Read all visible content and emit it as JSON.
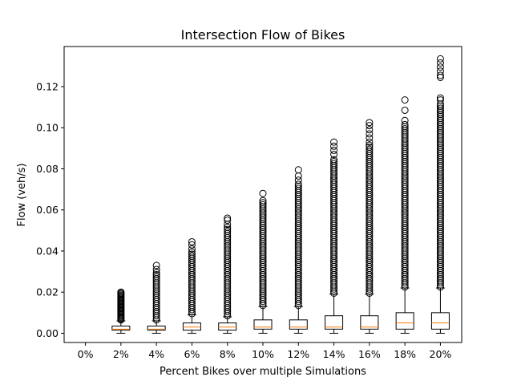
{
  "chart_data": {
    "type": "boxplot",
    "title": "Intersection Flow of Bikes",
    "xlabel": "Percent Bikes over multiple Simulations",
    "ylabel": "Flow (veh/s)",
    "ylim": [
      -0.0045,
      0.1395
    ],
    "yticks": [
      0.0,
      0.02,
      0.04,
      0.06,
      0.08,
      0.1,
      0.12
    ],
    "ytick_labels": [
      "0.00",
      "0.02",
      "0.04",
      "0.06",
      "0.08",
      "0.10",
      "0.12"
    ],
    "categories": [
      "0%",
      "2%",
      "4%",
      "6%",
      "8%",
      "10%",
      "12%",
      "14%",
      "16%",
      "18%",
      "20%"
    ],
    "grid": false,
    "colors": {
      "median": "#ff7f0e",
      "box": "#000000",
      "flier": "#000000"
    },
    "boxes": [
      {
        "label": "0%",
        "q1": 0.0,
        "median": 0.0,
        "q3": 0.0,
        "whisker_low": 0.0,
        "whisker_high": 0.0,
        "fliers": []
      },
      {
        "label": "2%",
        "q1": 0.0015,
        "median": 0.002,
        "q3": 0.0035,
        "whisker_low": 0.0,
        "whisker_high": 0.006,
        "fliers": [
          0.0065,
          0.007,
          0.0075,
          0.008,
          0.0085,
          0.009,
          0.0095,
          0.01,
          0.0105,
          0.011,
          0.0115,
          0.012,
          0.0125,
          0.013,
          0.0135,
          0.014,
          0.0145,
          0.015,
          0.0155,
          0.016,
          0.0165,
          0.017,
          0.0175,
          0.018,
          0.0185,
          0.019,
          0.0195,
          0.02
        ]
      },
      {
        "label": "4%",
        "q1": 0.0015,
        "median": 0.002,
        "q3": 0.0035,
        "whisker_low": 0.0,
        "whisker_high": 0.006,
        "fliers": [
          0.0065,
          0.0075,
          0.0085,
          0.0095,
          0.0105,
          0.0115,
          0.0125,
          0.0135,
          0.0145,
          0.0155,
          0.0165,
          0.0175,
          0.0185,
          0.0195,
          0.0205,
          0.0215,
          0.0225,
          0.0235,
          0.0245,
          0.0255,
          0.0265,
          0.0275,
          0.0285,
          0.0295,
          0.031,
          0.033
        ]
      },
      {
        "label": "6%",
        "q1": 0.0015,
        "median": 0.003,
        "q3": 0.005,
        "whisker_low": 0.0,
        "whisker_high": 0.009,
        "fliers": [
          0.0095,
          0.0105,
          0.0115,
          0.0125,
          0.0135,
          0.0145,
          0.0155,
          0.0165,
          0.0175,
          0.0185,
          0.0195,
          0.0205,
          0.0215,
          0.0225,
          0.0235,
          0.0245,
          0.0255,
          0.0265,
          0.0275,
          0.0285,
          0.0295,
          0.0305,
          0.0315,
          0.0325,
          0.0335,
          0.0345,
          0.0355,
          0.0365,
          0.0375,
          0.0385,
          0.0395,
          0.041,
          0.043,
          0.0445
        ]
      },
      {
        "label": "8%",
        "q1": 0.0015,
        "median": 0.003,
        "q3": 0.005,
        "whisker_low": 0.0,
        "whisker_high": 0.008,
        "fliers": [
          0.0085,
          0.0095,
          0.0105,
          0.0115,
          0.0125,
          0.0135,
          0.0145,
          0.0155,
          0.0165,
          0.0175,
          0.0185,
          0.0195,
          0.0205,
          0.0215,
          0.0225,
          0.0235,
          0.0245,
          0.0255,
          0.0265,
          0.0275,
          0.0285,
          0.0295,
          0.0305,
          0.0315,
          0.0325,
          0.0335,
          0.0345,
          0.0355,
          0.0365,
          0.0375,
          0.0385,
          0.0395,
          0.0405,
          0.0415,
          0.0425,
          0.0435,
          0.0445,
          0.0455,
          0.0465,
          0.0475,
          0.0485,
          0.0495,
          0.0505,
          0.0515,
          0.053,
          0.055,
          0.056
        ]
      },
      {
        "label": "10%",
        "q1": 0.002,
        "median": 0.003,
        "q3": 0.0065,
        "whisker_low": 0.0,
        "whisker_high": 0.013,
        "fliers": [
          0.0135,
          0.0145,
          0.0155,
          0.0165,
          0.0175,
          0.0185,
          0.0195,
          0.0205,
          0.0215,
          0.0225,
          0.0235,
          0.0245,
          0.0255,
          0.0265,
          0.0275,
          0.0285,
          0.0295,
          0.0305,
          0.0315,
          0.0325,
          0.0335,
          0.0345,
          0.0355,
          0.0365,
          0.0375,
          0.0385,
          0.0395,
          0.0405,
          0.0415,
          0.0425,
          0.0435,
          0.0445,
          0.0455,
          0.0465,
          0.0475,
          0.0485,
          0.0495,
          0.0505,
          0.0515,
          0.0525,
          0.0535,
          0.0545,
          0.0555,
          0.0565,
          0.0575,
          0.0585,
          0.0595,
          0.0605,
          0.0615,
          0.0625,
          0.0635,
          0.0645,
          0.068
        ]
      },
      {
        "label": "12%",
        "q1": 0.002,
        "median": 0.003,
        "q3": 0.0065,
        "whisker_low": 0.0,
        "whisker_high": 0.013,
        "fliers": [
          0.0135,
          0.0145,
          0.0155,
          0.0165,
          0.0175,
          0.0185,
          0.0195,
          0.0205,
          0.0215,
          0.0225,
          0.0235,
          0.0245,
          0.0255,
          0.0265,
          0.0275,
          0.0285,
          0.0295,
          0.0305,
          0.0315,
          0.0325,
          0.0335,
          0.0345,
          0.0355,
          0.0365,
          0.0375,
          0.0385,
          0.0395,
          0.0405,
          0.0415,
          0.0425,
          0.0435,
          0.0445,
          0.0455,
          0.0465,
          0.0475,
          0.0485,
          0.0495,
          0.0505,
          0.0515,
          0.0525,
          0.0535,
          0.0545,
          0.0555,
          0.0565,
          0.0575,
          0.0585,
          0.0595,
          0.0605,
          0.0615,
          0.0625,
          0.0635,
          0.0645,
          0.0655,
          0.0665,
          0.0675,
          0.0685,
          0.0695,
          0.0705,
          0.0715,
          0.0725,
          0.0745,
          0.0765,
          0.0795
        ]
      },
      {
        "label": "14%",
        "q1": 0.002,
        "median": 0.003,
        "q3": 0.0085,
        "whisker_low": 0.0,
        "whisker_high": 0.019,
        "fliers": [
          0.0195,
          0.0205,
          0.0215,
          0.0225,
          0.0235,
          0.0245,
          0.0255,
          0.0265,
          0.0275,
          0.0285,
          0.0295,
          0.0305,
          0.0315,
          0.0325,
          0.0335,
          0.0345,
          0.0355,
          0.0365,
          0.0375,
          0.0385,
          0.0395,
          0.0405,
          0.0415,
          0.0425,
          0.0435,
          0.0445,
          0.0455,
          0.0465,
          0.0475,
          0.0485,
          0.0495,
          0.0505,
          0.0515,
          0.0525,
          0.0535,
          0.0545,
          0.0555,
          0.0565,
          0.0575,
          0.0585,
          0.0595,
          0.0605,
          0.0615,
          0.0625,
          0.0635,
          0.0645,
          0.0655,
          0.0665,
          0.0675,
          0.0685,
          0.0695,
          0.0705,
          0.0715,
          0.0725,
          0.0735,
          0.0745,
          0.0755,
          0.0765,
          0.0775,
          0.0785,
          0.0795,
          0.0805,
          0.0815,
          0.0825,
          0.0835,
          0.0845,
          0.087,
          0.089,
          0.091,
          0.093
        ]
      },
      {
        "label": "16%",
        "q1": 0.002,
        "median": 0.003,
        "q3": 0.0085,
        "whisker_low": 0.0,
        "whisker_high": 0.019,
        "fliers": [
          0.0195,
          0.0205,
          0.0215,
          0.0225,
          0.0235,
          0.0245,
          0.0255,
          0.0265,
          0.0275,
          0.0285,
          0.0295,
          0.0305,
          0.0315,
          0.0325,
          0.0335,
          0.0345,
          0.0355,
          0.0365,
          0.0375,
          0.0385,
          0.0395,
          0.0405,
          0.0415,
          0.0425,
          0.0435,
          0.0445,
          0.0455,
          0.0465,
          0.0475,
          0.0485,
          0.0495,
          0.0505,
          0.0515,
          0.0525,
          0.0535,
          0.0545,
          0.0555,
          0.0565,
          0.0575,
          0.0585,
          0.0595,
          0.0605,
          0.0615,
          0.0625,
          0.0635,
          0.0645,
          0.0655,
          0.0665,
          0.0675,
          0.0685,
          0.0695,
          0.0705,
          0.0715,
          0.0725,
          0.0735,
          0.0745,
          0.0755,
          0.0765,
          0.0775,
          0.0785,
          0.0795,
          0.0805,
          0.0815,
          0.0825,
          0.0835,
          0.0845,
          0.0855,
          0.0865,
          0.0875,
          0.0885,
          0.0895,
          0.0905,
          0.0915,
          0.093,
          0.095,
          0.097,
          0.099,
          0.101,
          0.1025
        ]
      },
      {
        "label": "18%",
        "q1": 0.002,
        "median": 0.005,
        "q3": 0.01,
        "whisker_low": 0.0,
        "whisker_high": 0.022,
        "fliers": [
          0.0225,
          0.0235,
          0.0245,
          0.0255,
          0.0265,
          0.0275,
          0.0285,
          0.0295,
          0.0305,
          0.0315,
          0.0325,
          0.0335,
          0.0345,
          0.0355,
          0.0365,
          0.0375,
          0.0385,
          0.0395,
          0.0405,
          0.0415,
          0.0425,
          0.0435,
          0.0445,
          0.0455,
          0.0465,
          0.0475,
          0.0485,
          0.0495,
          0.0505,
          0.0515,
          0.0525,
          0.0535,
          0.0545,
          0.0555,
          0.0565,
          0.0575,
          0.0585,
          0.0595,
          0.0605,
          0.0615,
          0.0625,
          0.0635,
          0.0645,
          0.0655,
          0.0665,
          0.0675,
          0.0685,
          0.0695,
          0.0705,
          0.0715,
          0.0725,
          0.0735,
          0.0745,
          0.0755,
          0.0765,
          0.0775,
          0.0785,
          0.0795,
          0.0805,
          0.0815,
          0.0825,
          0.0835,
          0.0845,
          0.0855,
          0.0865,
          0.0875,
          0.0885,
          0.0895,
          0.0905,
          0.0915,
          0.0925,
          0.0935,
          0.0945,
          0.0955,
          0.0965,
          0.0975,
          0.0985,
          0.0995,
          0.1005,
          0.1015,
          0.1035,
          0.1085,
          0.1135
        ]
      },
      {
        "label": "20%",
        "q1": 0.002,
        "median": 0.005,
        "q3": 0.01,
        "whisker_low": 0.0,
        "whisker_high": 0.022,
        "fliers": [
          0.0225,
          0.0235,
          0.0245,
          0.0255,
          0.0265,
          0.0275,
          0.0285,
          0.0295,
          0.0305,
          0.0315,
          0.0325,
          0.0335,
          0.0345,
          0.0355,
          0.0365,
          0.0375,
          0.0385,
          0.0395,
          0.0405,
          0.0415,
          0.0425,
          0.0435,
          0.0445,
          0.0455,
          0.0465,
          0.0475,
          0.0485,
          0.0495,
          0.0505,
          0.0515,
          0.0525,
          0.0535,
          0.0545,
          0.0555,
          0.0565,
          0.0575,
          0.0585,
          0.0595,
          0.0605,
          0.0615,
          0.0625,
          0.0635,
          0.0645,
          0.0655,
          0.0665,
          0.0675,
          0.0685,
          0.0695,
          0.0705,
          0.0715,
          0.0725,
          0.0735,
          0.0745,
          0.0755,
          0.0765,
          0.0775,
          0.0785,
          0.0795,
          0.0805,
          0.0815,
          0.0825,
          0.0835,
          0.0845,
          0.0855,
          0.0865,
          0.0875,
          0.0885,
          0.0895,
          0.0905,
          0.0915,
          0.0925,
          0.0935,
          0.0945,
          0.0955,
          0.0965,
          0.0975,
          0.0985,
          0.0995,
          0.1005,
          0.1015,
          0.1025,
          0.1035,
          0.1045,
          0.1055,
          0.1065,
          0.1075,
          0.1085,
          0.1095,
          0.1105,
          0.1115,
          0.1135,
          0.1145,
          0.1245,
          0.1255,
          0.1275,
          0.1295,
          0.1315,
          0.1335
        ]
      }
    ]
  }
}
